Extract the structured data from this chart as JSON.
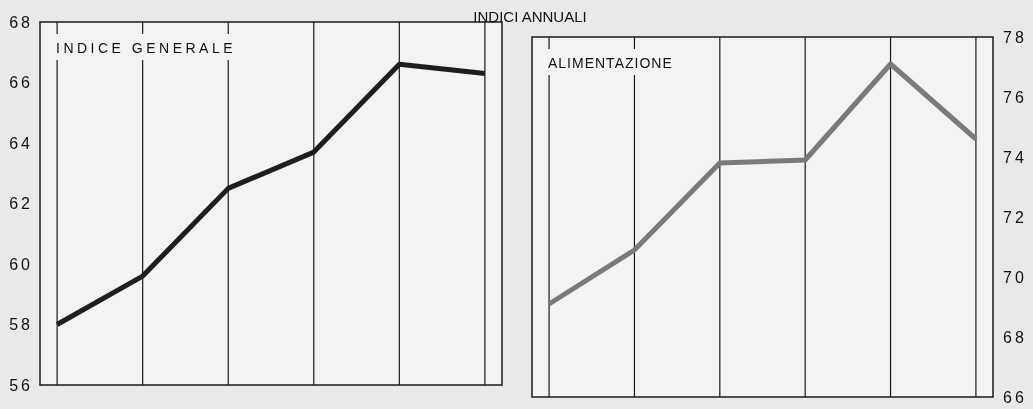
{
  "chart_data": [
    {
      "type": "line",
      "title": "INDICE GENERALE",
      "annotations": [
        "INDICI ANNUALI"
      ],
      "categories": [
        null,
        null,
        null,
        null,
        null,
        null
      ],
      "series": [
        {
          "color": "#1e1e1e",
          "values": [
            58.0,
            59.6,
            62.5,
            63.7,
            66.6,
            66.3
          ]
        }
      ],
      "ylim": [
        56,
        68
      ],
      "yticks": [
        56,
        58,
        60,
        62,
        64,
        66,
        68
      ],
      "grid": "x"
    },
    {
      "type": "line",
      "title": "ALIMENTAZIONE",
      "categories": [
        null,
        null,
        null,
        null,
        null,
        null
      ],
      "series": [
        {
          "color": "#7a7a7a",
          "values": [
            69.1,
            70.9,
            73.8,
            73.9,
            77.1,
            74.6
          ]
        }
      ],
      "ylim": [
        66,
        78
      ],
      "yticks": [
        66,
        68,
        70,
        72,
        74,
        76,
        78
      ],
      "grid": "x"
    }
  ]
}
